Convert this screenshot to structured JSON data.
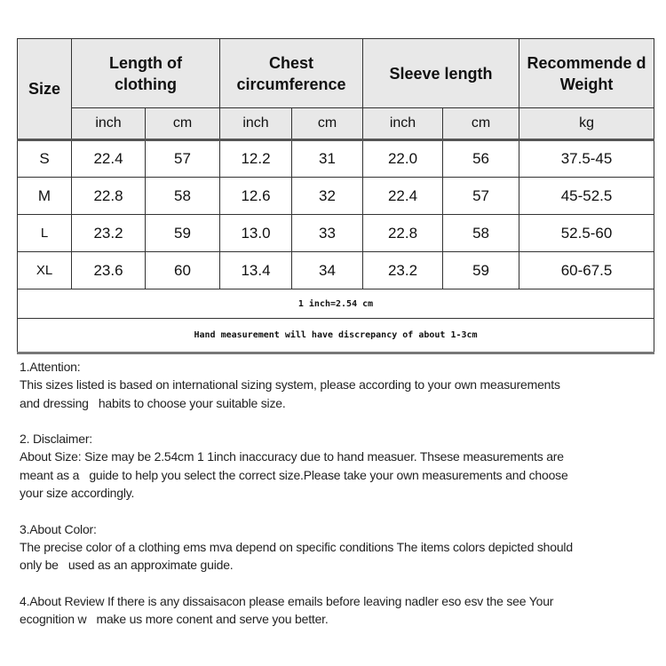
{
  "table": {
    "headers": {
      "size": "Size",
      "length": "Length of clothing",
      "chest": "Chest circumference",
      "sleeve": "Sleeve length",
      "weight": "Recommende d Weight"
    },
    "units": [
      "inch",
      "cm",
      "inch",
      "cm",
      "inch",
      "cm",
      "kg"
    ],
    "rows": [
      {
        "size": "S",
        "length_in": "22.4",
        "length_cm": "57",
        "chest_in": "12.2",
        "chest_cm": "31",
        "sleeve_in": "22.0",
        "sleeve_cm": "56",
        "weight": "37.5-45"
      },
      {
        "size": "M",
        "length_in": "22.8",
        "length_cm": "58",
        "chest_in": "12.6",
        "chest_cm": "32",
        "sleeve_in": "22.4",
        "sleeve_cm": "57",
        "weight": "45-52.5"
      },
      {
        "size": "L",
        "length_in": "23.2",
        "length_cm": "59",
        "chest_in": "13.0",
        "chest_cm": "33",
        "sleeve_in": "22.8",
        "sleeve_cm": "58",
        "weight": "52.5-60"
      },
      {
        "size": "XL",
        "length_in": "23.6",
        "length_cm": "60",
        "chest_in": "13.4",
        "chest_cm": "34",
        "sleeve_in": "23.2",
        "sleeve_cm": "59",
        "weight": "60-67.5"
      }
    ],
    "conversion_note": "1 inch=2.54 cm",
    "discrepancy_note": "Hand measurement will have discrepancy of about 1-3cm"
  },
  "notes": [
    {
      "lines": [
        "1.Attention:",
        "This sizes listed is based on international sizing system, please according to your own measurements",
        "and dressing   habits to choose your suitable size."
      ]
    },
    {
      "lines": [
        "2. Disclaimer:",
        "About Size: Size may be 2.54cm 1 1inch inaccuracy due to hand measuer. Thsese measurements are",
        "meant as a   guide to help you select the correct size.Please take your own measurements and choose",
        "your size accordingly."
      ]
    },
    {
      "lines": [
        "3.About Color:",
        "The precise color of a clothing ems mva depend on specific conditions The items colors depicted should",
        "only be   used as an approximate guide."
      ]
    },
    {
      "lines": [
        "4.About Review If there is any dissaisacon please emails before leaving nadler eso esv the see Your",
        "ecognition w   make us more conent and serve you better."
      ]
    }
  ]
}
